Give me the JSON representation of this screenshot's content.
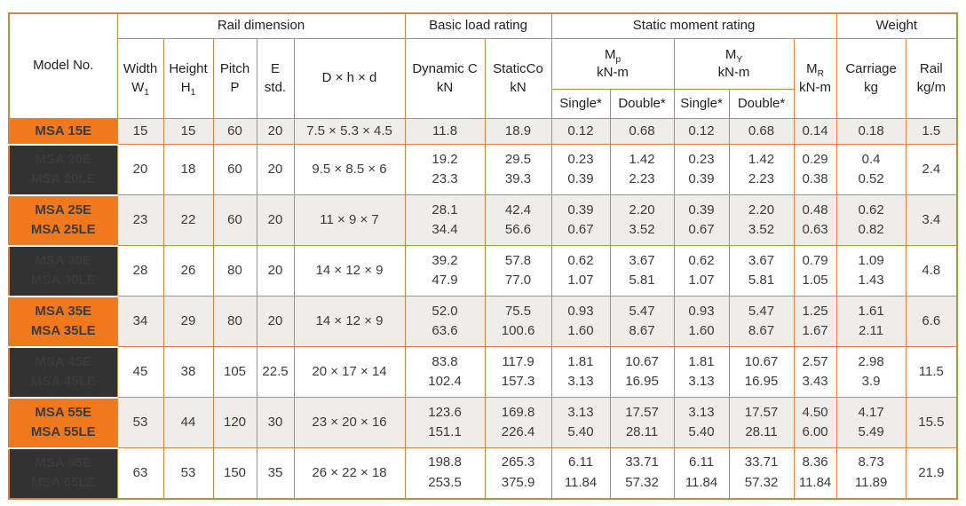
{
  "colors": {
    "accent_orange": "#F0791E",
    "model_dark": "#323232",
    "grid_line": "#D9823B",
    "row_shaded": "#EEEDEA"
  },
  "table": {
    "groups": {
      "rail": "Rail dimension",
      "load": "Basic load rating",
      "moment": "Static moment rating",
      "weight": "Weight"
    },
    "headers": {
      "model": "Model No.",
      "width": "Width\nW~1~",
      "height": "Height\nH~1~",
      "pitch": "Pitch\nP",
      "e_std": "E\nstd.",
      "dhd": "D × h × d",
      "dynamic": "Dynamic C\nkN",
      "static_co": "StaticCo\nkN",
      "mp": "M~p~\nkN-m",
      "my": "M~Y~\nkN-m",
      "mr": "M~R~\nkN-m",
      "carriage": "Carriage\nkg",
      "rail_kgm": "Rail\nkg/m",
      "single": "Single*",
      "double": "Double*"
    }
  },
  "chart_data": {
    "type": "table",
    "columns": [
      "Model No.",
      "Width W1",
      "Height H1",
      "Pitch P",
      "E std.",
      "D × h × d",
      "Dynamic C kN",
      "StaticCo kN",
      "Mp kN-m Single*",
      "Mp kN-m Double*",
      "My kN-m Single*",
      "My kN-m Double*",
      "MR kN-m",
      "Carriage kg",
      "Rail kg/m"
    ],
    "rows": [
      {
        "model": [
          "MSA 15E"
        ],
        "cells": [
          [
            "15"
          ],
          [
            "15"
          ],
          [
            "60"
          ],
          [
            "20"
          ],
          [
            "7.5 × 5.3 × 4.5"
          ],
          [
            "11.8"
          ],
          [
            "18.9"
          ],
          [
            "0.12"
          ],
          [
            "0.68"
          ],
          [
            "0.12"
          ],
          [
            "0.68"
          ],
          [
            "0.14"
          ],
          [
            "0.18"
          ],
          [
            "1.5"
          ]
        ]
      },
      {
        "model": [
          "MSA 20E",
          "MSA 20LE"
        ],
        "cells": [
          [
            "20"
          ],
          [
            "18"
          ],
          [
            "60"
          ],
          [
            "20"
          ],
          [
            "9.5 × 8.5 × 6"
          ],
          [
            "19.2",
            "23.3"
          ],
          [
            "29.5",
            "39.3"
          ],
          [
            "0.23",
            "0.39"
          ],
          [
            "1.42",
            "2.23"
          ],
          [
            "0.23",
            "0.39"
          ],
          [
            "1.42",
            "2.23"
          ],
          [
            "0.29",
            "0.38"
          ],
          [
            "0.4",
            "0.52"
          ],
          [
            "2.4"
          ]
        ]
      },
      {
        "model": [
          "MSA 25E",
          "MSA 25LE"
        ],
        "cells": [
          [
            "23"
          ],
          [
            "22"
          ],
          [
            "60"
          ],
          [
            "20"
          ],
          [
            "11 × 9 × 7"
          ],
          [
            "28.1",
            "34.4"
          ],
          [
            "42.4",
            "56.6"
          ],
          [
            "0.39",
            "0.67"
          ],
          [
            "2.20",
            "3.52"
          ],
          [
            "0.39",
            "0.67"
          ],
          [
            "2.20",
            "3.52"
          ],
          [
            "0.48",
            "0.63"
          ],
          [
            "0.62",
            "0.82"
          ],
          [
            "3.4"
          ]
        ]
      },
      {
        "model": [
          "MSA 30E",
          "MSA 30LE"
        ],
        "cells": [
          [
            "28"
          ],
          [
            "26"
          ],
          [
            "80"
          ],
          [
            "20"
          ],
          [
            "14 × 12 × 9"
          ],
          [
            "39.2",
            "47.9"
          ],
          [
            "57.8",
            "77.0"
          ],
          [
            "0.62",
            "1.07"
          ],
          [
            "3.67",
            "5.81"
          ],
          [
            "0.62",
            "1.07"
          ],
          [
            "3.67",
            "5.81"
          ],
          [
            "0.79",
            "1.05"
          ],
          [
            "1.09",
            "1.43"
          ],
          [
            "4.8"
          ]
        ]
      },
      {
        "model": [
          "MSA 35E",
          "MSA 35LE"
        ],
        "cells": [
          [
            "34"
          ],
          [
            "29"
          ],
          [
            "80"
          ],
          [
            "20"
          ],
          [
            "14 × 12 × 9"
          ],
          [
            "52.0",
            "63.6"
          ],
          [
            "75.5",
            "100.6"
          ],
          [
            "0.93",
            "1.60"
          ],
          [
            "5.47",
            "8.67"
          ],
          [
            "0.93",
            "1.60"
          ],
          [
            "5.47",
            "8.67"
          ],
          [
            "1.25",
            "1.67"
          ],
          [
            "1.61",
            "2.11"
          ],
          [
            "6.6"
          ]
        ]
      },
      {
        "model": [
          "MSA 45E",
          "MSA 45LE"
        ],
        "cells": [
          [
            "45"
          ],
          [
            "38"
          ],
          [
            "105"
          ],
          [
            "22.5"
          ],
          [
            "20 × 17 × 14"
          ],
          [
            "83.8",
            "102.4"
          ],
          [
            "117.9",
            "157.3"
          ],
          [
            "1.81",
            "3.13"
          ],
          [
            "10.67",
            "16.95"
          ],
          [
            "1.81",
            "3.13"
          ],
          [
            "10.67",
            "16.95"
          ],
          [
            "2.57",
            "3.43"
          ],
          [
            "2.98",
            "3.9"
          ],
          [
            "11.5"
          ]
        ]
      },
      {
        "model": [
          "MSA 55E",
          "MSA 55LE"
        ],
        "cells": [
          [
            "53"
          ],
          [
            "44"
          ],
          [
            "120"
          ],
          [
            "30"
          ],
          [
            "23 × 20 × 16"
          ],
          [
            "123.6",
            "151.1"
          ],
          [
            "169.8",
            "226.4"
          ],
          [
            "3.13",
            "5.40"
          ],
          [
            "17.57",
            "28.11"
          ],
          [
            "3.13",
            "5.40"
          ],
          [
            "17.57",
            "28.11"
          ],
          [
            "4.50",
            "6.00"
          ],
          [
            "4.17",
            "5.49"
          ],
          [
            "15.5"
          ]
        ]
      },
      {
        "model": [
          "MSA 65E",
          "MSA 65LE"
        ],
        "cells": [
          [
            "63"
          ],
          [
            "53"
          ],
          [
            "150"
          ],
          [
            "35"
          ],
          [
            "26 × 22 × 18"
          ],
          [
            "198.8",
            "253.5"
          ],
          [
            "265.3",
            "375.9"
          ],
          [
            "6.11",
            "11.84"
          ],
          [
            "33.71",
            "57.32"
          ],
          [
            "6.11",
            "11.84"
          ],
          [
            "33.71",
            "57.32"
          ],
          [
            "8.36",
            "11.84"
          ],
          [
            "8.73",
            "11.89"
          ],
          [
            "21.9"
          ]
        ]
      }
    ]
  }
}
